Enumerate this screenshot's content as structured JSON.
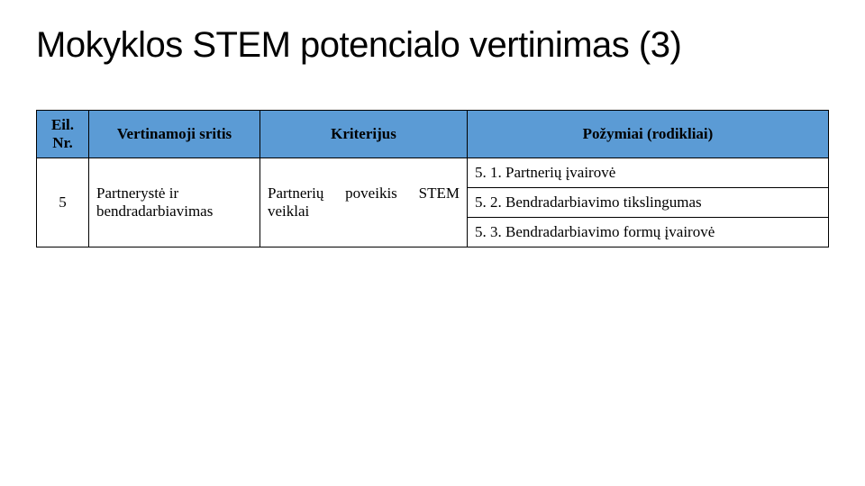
{
  "title": "Mokyklos STEM potencialo vertinimas (3)",
  "table": {
    "headers": {
      "nr": "Eil. Nr.",
      "area": "Vertinamoji sritis",
      "criterion": "Kriterijus",
      "indicator": "Požymiai (rodikliai)"
    },
    "row": {
      "nr": "5",
      "area": "Partnerystė ir bendradarbiavimas",
      "criterion": "Partnerių poveikis STEM veiklai",
      "indicators": {
        "i1": "5. 1. Partnerių įvairovė",
        "i2": "5. 2. Bendradarbiavimo tikslingumas",
        "i3": "5. 3. Bendradarbiavimo formų įvairovė"
      }
    }
  },
  "colors": {
    "header_bg": "#5b9bd5",
    "border": "#000000",
    "text": "#000000",
    "background": "#ffffff"
  }
}
